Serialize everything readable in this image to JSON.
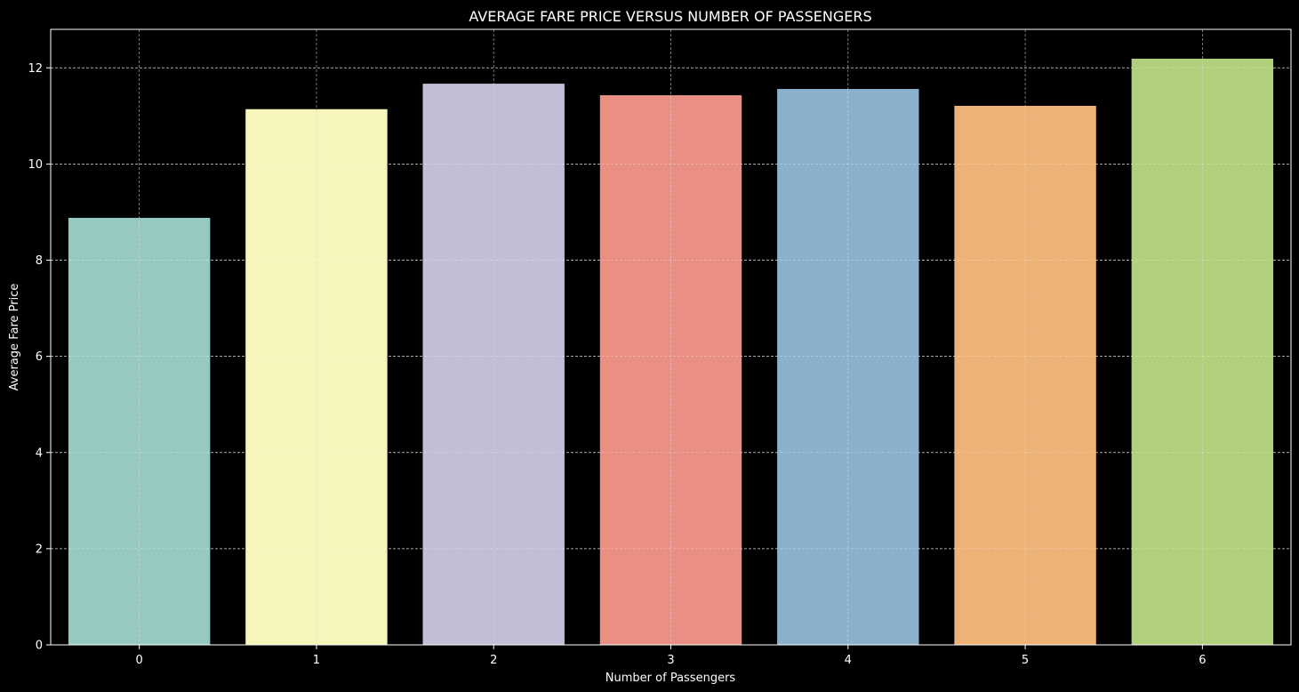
{
  "chart_data": {
    "type": "bar",
    "title": "AVERAGE FARE PRICE VERSUS NUMBER OF PASSENGERS",
    "xlabel": "Number of Passengers",
    "ylabel": "Average Fare Price",
    "categories": [
      "0",
      "1",
      "2",
      "3",
      "4",
      "5",
      "6"
    ],
    "values": [
      8.88,
      11.14,
      11.67,
      11.43,
      11.56,
      11.21,
      12.19
    ],
    "colors": [
      "#96cac1",
      "#f6f6bc",
      "#c1bed6",
      "#ea8f84",
      "#8bb0cb",
      "#ecb276",
      "#b1d07b"
    ],
    "ylim": [
      0,
      12.8
    ],
    "yticks": [
      0,
      2,
      4,
      6,
      8,
      10,
      12
    ],
    "grid": true,
    "background": "#000000",
    "foreground": "#ffffff"
  }
}
